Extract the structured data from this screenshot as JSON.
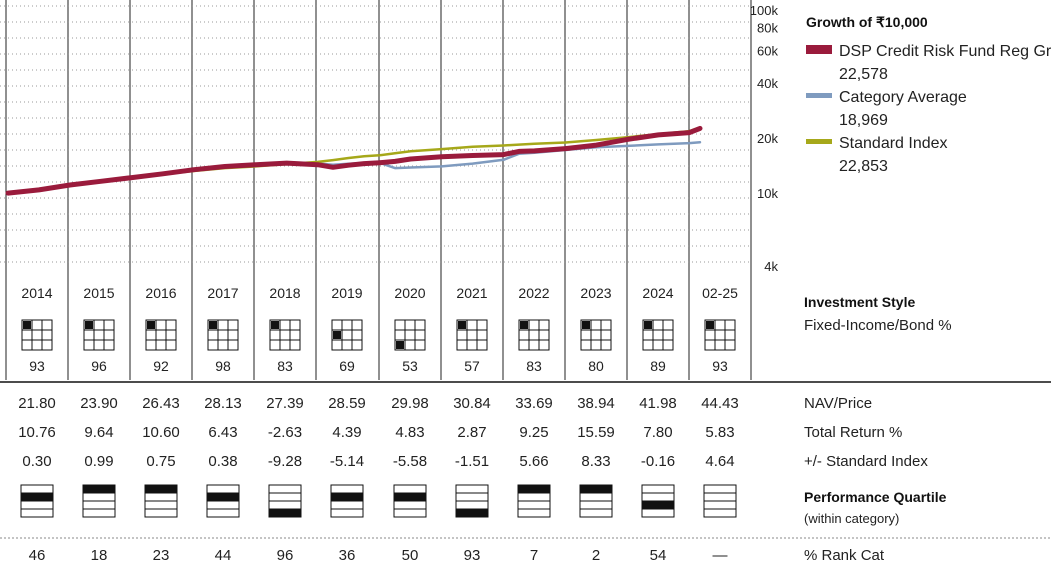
{
  "chart_data": {
    "type": "line",
    "title": "Growth of ₹10,000",
    "y_scale": "log",
    "ylim": [
      4000,
      100000
    ],
    "y_ticks": [
      {
        "value": 100000,
        "label": "100k"
      },
      {
        "value": 80000,
        "label": "80k"
      },
      {
        "value": 60000,
        "label": "60k"
      },
      {
        "value": 40000,
        "label": "40k"
      },
      {
        "value": 20000,
        "label": "20k"
      },
      {
        "value": 10000,
        "label": "10k"
      },
      {
        "value": 4000,
        "label": "4k"
      }
    ],
    "x": [
      "2013-12",
      "2014-06",
      "2014-12",
      "2015-06",
      "2015-12",
      "2016-06",
      "2016-12",
      "2017-06",
      "2017-12",
      "2018-06",
      "2018-12",
      "2019-03",
      "2019-06",
      "2019-09",
      "2019-12",
      "2020-03",
      "2020-06",
      "2020-12",
      "2021-06",
      "2021-12",
      "2022-03",
      "2022-06",
      "2022-12",
      "2023-06",
      "2023-12",
      "2024-06",
      "2024-12",
      "2025-02"
    ],
    "legend_placement": "right",
    "series": [
      {
        "name": "DSP Credit Risk Fund Reg Gr",
        "value_label": "22,578",
        "color": "#9a1b3c",
        "values": [
          10000,
          10420,
          11080,
          11600,
          12150,
          12750,
          13430,
          13980,
          14300,
          14580,
          14300,
          13840,
          14200,
          14500,
          14660,
          14900,
          15350,
          15800,
          16050,
          16240,
          16900,
          17000,
          17500,
          18300,
          19650,
          20800,
          21400,
          22578
        ]
      },
      {
        "name": "Category Average",
        "value_label": "18,969",
        "color": "#7f9bbf",
        "values": [
          10000,
          10420,
          11080,
          11600,
          12150,
          12750,
          13430,
          13980,
          14300,
          14580,
          14520,
          14300,
          14480,
          14600,
          14650,
          13700,
          13800,
          14000,
          14500,
          15200,
          16400,
          16600,
          17200,
          17800,
          18100,
          18450,
          18750,
          18969
        ]
      },
      {
        "name": "Standard Index",
        "value_label": "22,853",
        "color": "#a6a81a",
        "values": [
          10000,
          10400,
          11050,
          11580,
          12180,
          12700,
          13200,
          13700,
          14000,
          14400,
          14800,
          15150,
          15550,
          15900,
          16100,
          16500,
          16950,
          17400,
          17900,
          18200,
          18400,
          18600,
          18900,
          19500,
          20200,
          21000,
          21800,
          22853
        ]
      }
    ]
  },
  "years": [
    "2014",
    "2015",
    "2016",
    "2017",
    "2018",
    "2019",
    "2020",
    "2021",
    "2022",
    "2023",
    "2024",
    "02-25"
  ],
  "investment_style": {
    "label": "Investment Style",
    "sublabel": "Fixed-Income/Bond %",
    "filled_cell": [
      0,
      0,
      0,
      0,
      0,
      3,
      6,
      0,
      0,
      0,
      0,
      0
    ],
    "values": [
      "93",
      "96",
      "92",
      "98",
      "83",
      "69",
      "53",
      "57",
      "83",
      "80",
      "89",
      "93"
    ]
  },
  "nav_price": {
    "label": "NAV/Price",
    "values": [
      "21.80",
      "23.90",
      "26.43",
      "28.13",
      "27.39",
      "28.59",
      "29.98",
      "30.84",
      "33.69",
      "38.94",
      "41.98",
      "44.43"
    ]
  },
  "total_return": {
    "label": "Total Return %",
    "values": [
      "10.76",
      "9.64",
      "10.60",
      "6.43",
      "-2.63",
      "4.39",
      "4.83",
      "2.87",
      "9.25",
      "15.59",
      "7.80",
      "5.83"
    ]
  },
  "vs_index": {
    "label": "+/- Standard Index",
    "values": [
      "0.30",
      "0.99",
      "0.75",
      "0.38",
      "-9.28",
      "-5.14",
      "-5.58",
      "-1.51",
      "5.66",
      "8.33",
      "-0.16",
      "4.64"
    ]
  },
  "performance_quartile": {
    "label": "Performance Quartile",
    "sublabel": "(within category)",
    "quartiles": [
      2,
      1,
      1,
      2,
      4,
      2,
      2,
      4,
      1,
      1,
      3,
      0
    ]
  },
  "rank_cat": {
    "label": "% Rank Cat",
    "values": [
      "46",
      "18",
      "23",
      "44",
      "96",
      "36",
      "50",
      "93",
      "7",
      "2",
      "54",
      "—"
    ]
  }
}
